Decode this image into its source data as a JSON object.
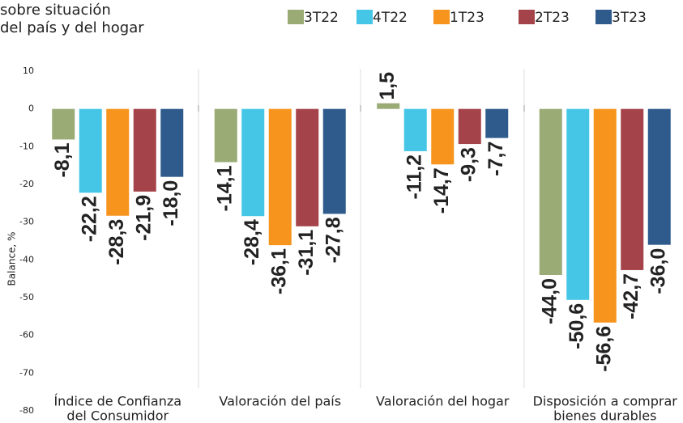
{
  "chart_data": {
    "type": "bar",
    "title_lines": [
      "sobre situación",
      "del país y del hogar"
    ],
    "y_label": "Balance, %",
    "categories": [
      [
        "Índice de Confianza",
        "del Consumidor"
      ],
      [
        "Valoración del país"
      ],
      [
        "Valoración del hogar"
      ],
      [
        "Disposición a comprar",
        "bienes durables"
      ]
    ],
    "series": [
      {
        "name": "3T22",
        "color": "#9aab76",
        "values": [
          -8.1,
          -14.1,
          1.5,
          -44.0
        ],
        "value_labels": [
          "-8,1",
          "-14,1",
          "1,5",
          "-44,0"
        ]
      },
      {
        "name": "4T22",
        "color": "#45c6e6",
        "values": [
          -22.2,
          -28.4,
          -11.2,
          -50.6
        ],
        "value_labels": [
          "-22,2",
          "-28,4",
          "-11,2",
          "-50,6"
        ]
      },
      {
        "name": "1T23",
        "color": "#f7941d",
        "values": [
          -28.3,
          -36.1,
          -14.7,
          -56.6
        ],
        "value_labels": [
          "-28,3",
          "-36,1",
          "-14,7",
          "-56,6"
        ]
      },
      {
        "name": "2T23",
        "color": "#a5434a",
        "values": [
          -21.9,
          -31.1,
          -9.3,
          -42.7
        ],
        "value_labels": [
          "-21,9",
          "-31,1",
          "-9,3",
          "-42,7"
        ]
      },
      {
        "name": "3T23",
        "color": "#2e5b8c",
        "values": [
          -18.0,
          -27.8,
          -7.7,
          -36.0
        ],
        "value_labels": [
          "-18,0",
          "-27,8",
          "-7,7",
          "-36,0"
        ]
      }
    ],
    "ylim": [
      -80,
      10
    ],
    "yticks": [
      -80,
      -70,
      -60,
      -50,
      -40,
      -30,
      -20,
      -10,
      0,
      10
    ]
  }
}
